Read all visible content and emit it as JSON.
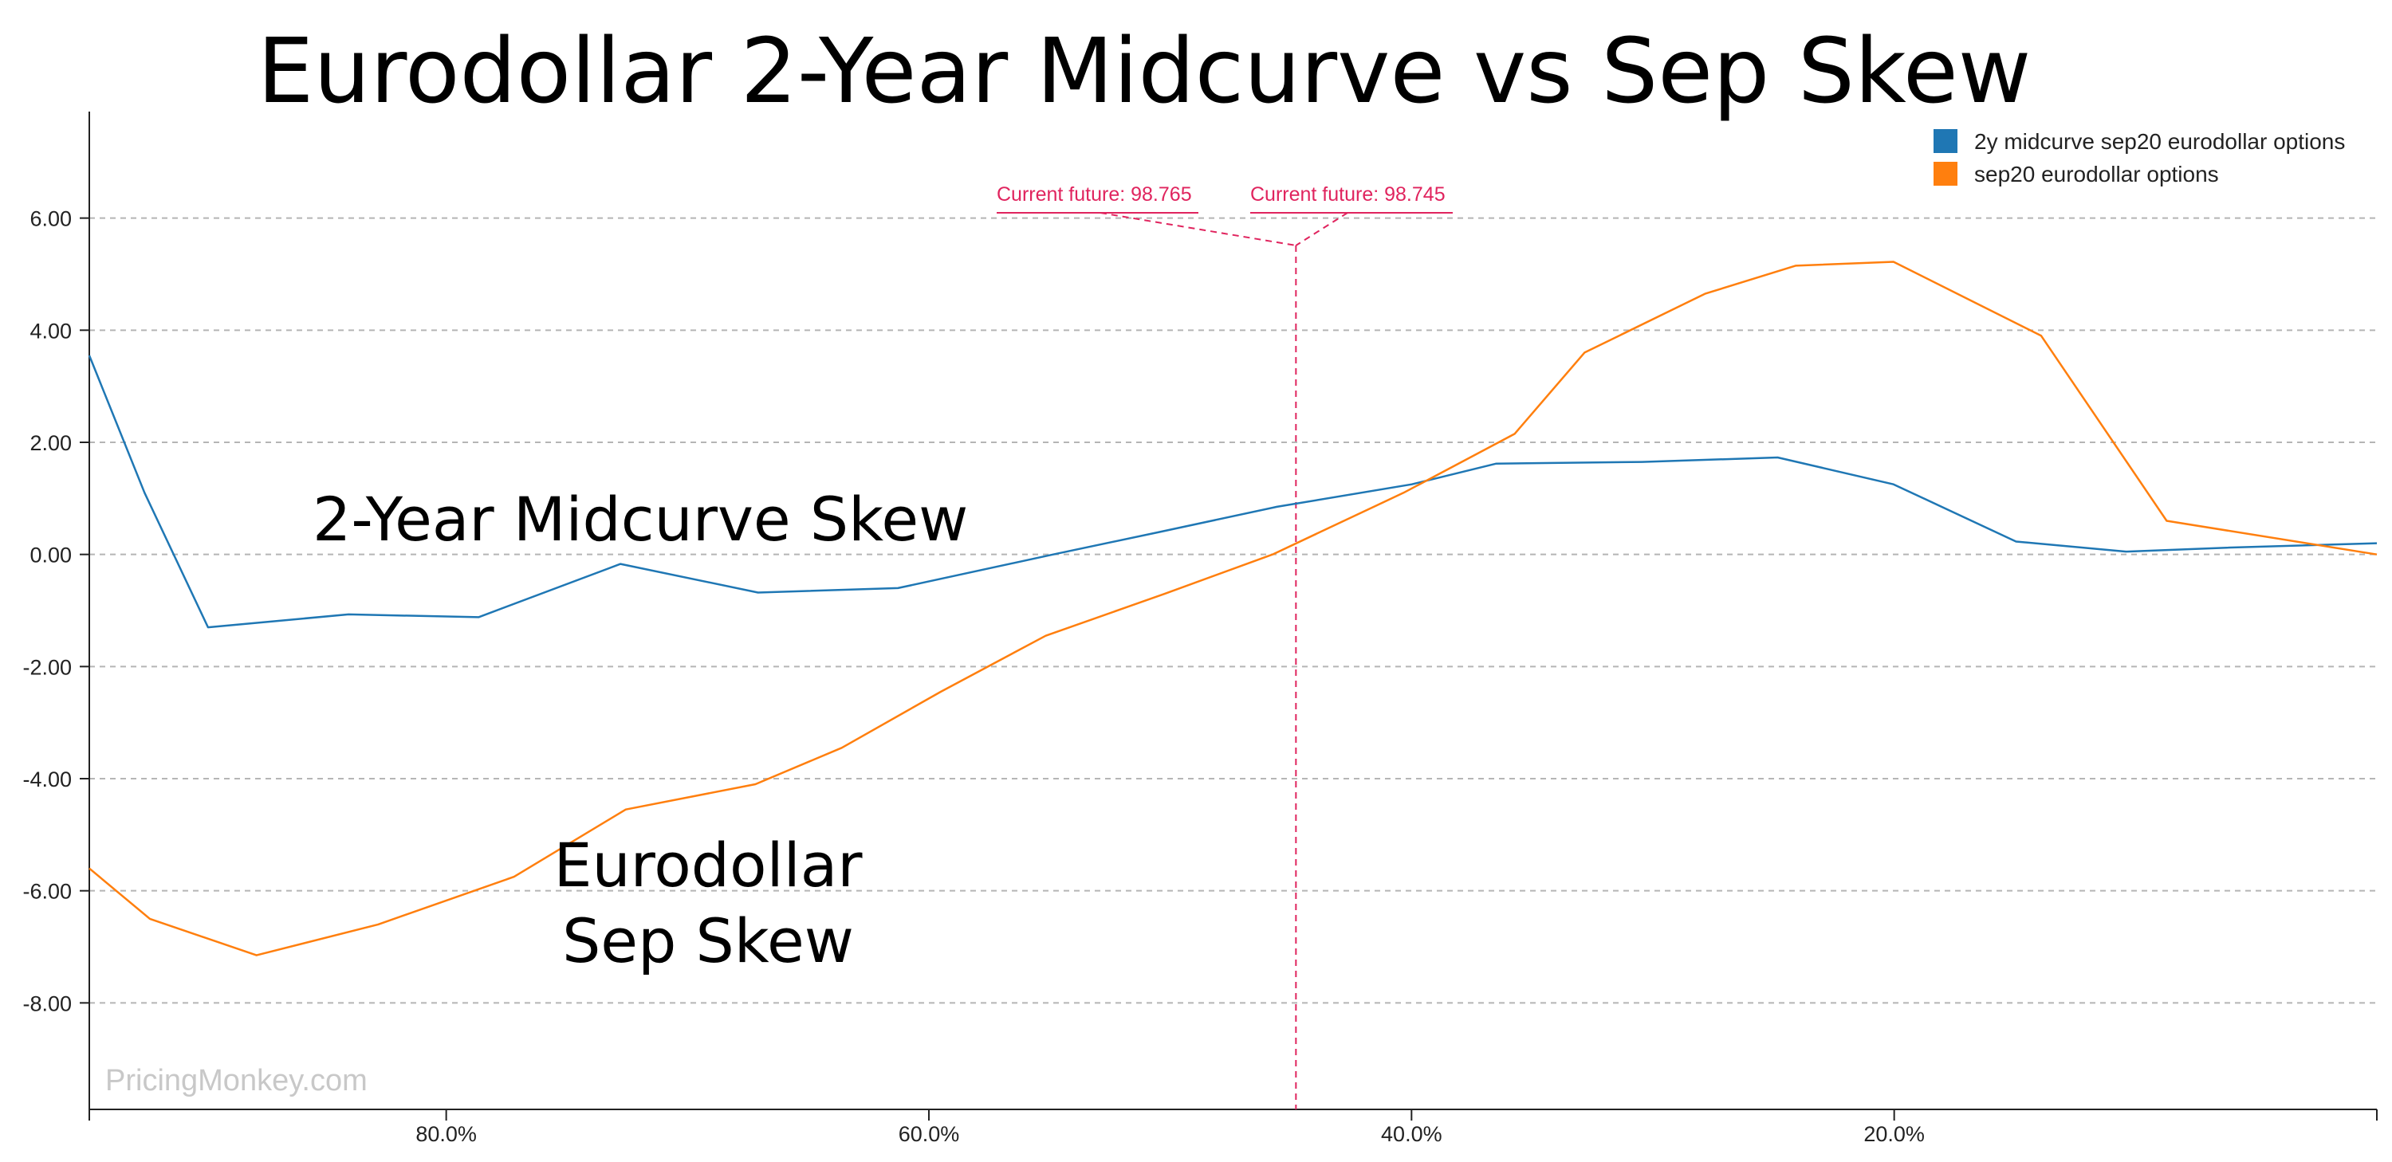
{
  "chart_data": {
    "type": "line",
    "title": "Eurodollar 2-Year Midcurve vs Sep Skew",
    "xlabel": "",
    "ylabel": "",
    "x_reversed": true,
    "xlim": [
      0.9479,
      0.0
    ],
    "ylim": [
      -9.9,
      7.9
    ],
    "xticks": [
      0.8,
      0.6,
      0.4,
      0.2
    ],
    "xtick_labels": [
      "80.0%",
      "60.0%",
      "40.0%",
      "20.0%"
    ],
    "yticks": [
      6,
      4,
      2,
      0,
      -2,
      -4,
      -6,
      -8
    ],
    "ytick_labels": [
      "6.00",
      "4.00",
      "2.00",
      "0.00",
      "-2.00",
      "-4.00",
      "-6.00",
      "-8.00"
    ],
    "grid": "horizontal-dashed",
    "legend_position": "top-right",
    "series": [
      {
        "name": "2y midcurve sep20 eurodollar options",
        "color": "#1f77b4",
        "points": [
          [
            0.9479,
            3.55
          ],
          [
            0.925,
            1.1
          ],
          [
            0.8987,
            -1.3
          ],
          [
            0.8405,
            -1.07
          ],
          [
            0.7866,
            -1.12
          ],
          [
            0.7278,
            -0.17
          ],
          [
            0.6708,
            -0.68
          ],
          [
            0.6128,
            -0.6
          ],
          [
            0.5485,
            0.0
          ],
          [
            0.5044,
            0.4
          ],
          [
            0.4558,
            0.85
          ],
          [
            0.3999,
            1.25
          ],
          [
            0.3649,
            1.62
          ],
          [
            0.3046,
            1.65
          ],
          [
            0.2483,
            1.73
          ],
          [
            0.2003,
            1.25
          ],
          [
            0.1495,
            0.23
          ],
          [
            0.1039,
            0.05
          ],
          [
            0.0623,
            0.12
          ],
          [
            0.0,
            0.2
          ]
        ]
      },
      {
        "name": "sep20 eurodollar options",
        "color": "#ff7f0e",
        "points": [
          [
            0.9479,
            -5.6
          ],
          [
            0.9228,
            -6.5
          ],
          [
            0.8786,
            -7.15
          ],
          [
            0.8282,
            -6.6
          ],
          [
            0.7719,
            -5.75
          ],
          [
            0.7256,
            -4.55
          ],
          [
            0.6719,
            -4.1
          ],
          [
            0.6361,
            -3.45
          ],
          [
            0.5951,
            -2.45
          ],
          [
            0.5516,
            -1.45
          ],
          [
            0.5022,
            -0.7
          ],
          [
            0.4576,
            0.0
          ],
          [
            0.4033,
            1.1
          ],
          [
            0.3573,
            2.15
          ],
          [
            0.3283,
            3.6
          ],
          [
            0.2784,
            4.65
          ],
          [
            0.2409,
            5.15
          ],
          [
            0.2003,
            5.22
          ],
          [
            0.1391,
            3.9
          ],
          [
            0.0871,
            0.6
          ],
          [
            0.0,
            0.0
          ]
        ]
      }
    ],
    "annotations": {
      "current_future_left": "Current future: 98.765",
      "current_future_right": "Current future: 98.745",
      "marker_x": 0.4479,
      "marker_color": "#e0245e",
      "midcurve_label": "2-Year Midcurve Skew",
      "sep_label_line1": "Eurodollar",
      "sep_label_line2": "Sep Skew"
    }
  },
  "watermark": "PricingMonkey.com"
}
